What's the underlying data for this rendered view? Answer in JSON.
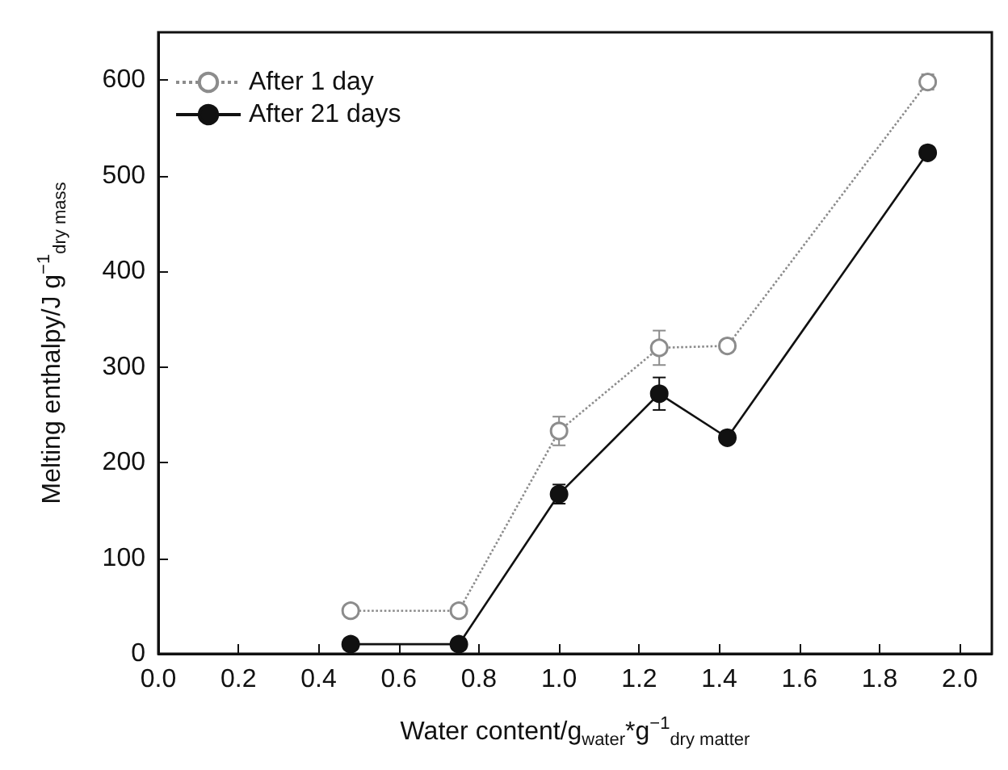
{
  "chart_data": {
    "type": "line",
    "xlabel": "Water content/g$_{water}$*g$^{−1}$$_{dry matter}$",
    "ylabel": "Melting enthalpy/J g$^{−1}$$_{dry mass}$",
    "x": [
      0.48,
      0.75,
      1.0,
      1.25,
      1.42,
      1.92
    ],
    "series": [
      {
        "name": "After 1 day",
        "color": "#8c8c8c",
        "line_style": "dotted",
        "marker": "circle",
        "values": [
          45,
          45,
          233,
          320,
          322,
          598
        ],
        "errors": [
          null,
          null,
          15,
          18,
          6,
          8
        ]
      },
      {
        "name": "After 21 days",
        "color": "#111111",
        "line_style": "solid",
        "marker": "circle",
        "values": [
          10,
          10,
          167,
          272,
          226,
          524
        ],
        "errors": [
          null,
          null,
          10,
          17,
          null,
          5
        ]
      }
    ],
    "xlim": [
      0,
      2.08
    ],
    "xticks": [
      {
        "value": 0,
        "label": "0.0"
      },
      0.2,
      0.4,
      0.6,
      0.8,
      {
        "value": 1,
        "label": "1.0"
      },
      1.2,
      1.4,
      1.6,
      1.8,
      {
        "value": 2,
        "label": "2.0"
      }
    ],
    "ylim": [
      0,
      650
    ],
    "yticks": [
      0,
      100,
      200,
      300,
      400,
      500,
      600
    ],
    "grid": false,
    "legend": "top left"
  }
}
